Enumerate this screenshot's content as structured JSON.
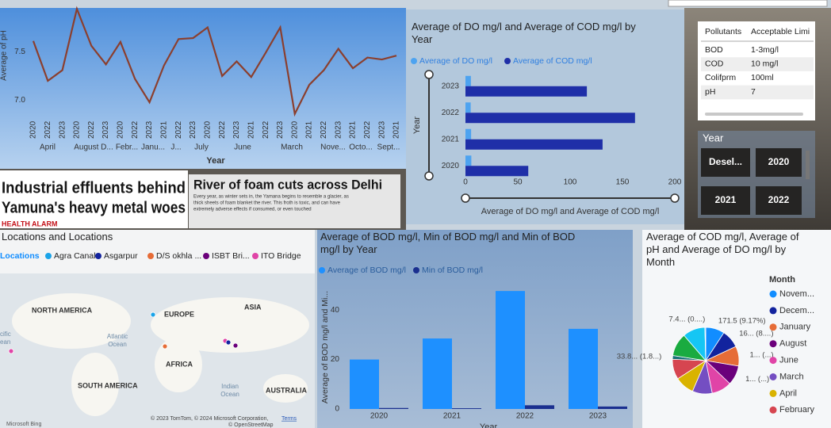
{
  "chart_data": [
    {
      "type": "line",
      "ylabel": "Average of pH",
      "xlabel": "Year",
      "categories": [
        "2020",
        "2022",
        "2023",
        "2020",
        "2022",
        "2023",
        "2020",
        "2022",
        "2023",
        "2021",
        "2022",
        "2023",
        "2020",
        "2022",
        "2023",
        "2021",
        "2022",
        "2023",
        "2020",
        "2021",
        "2022",
        "2023",
        "2021",
        "2022",
        "2023",
        "2021"
      ],
      "month_groups": [
        "April",
        "August D...",
        "Febr...",
        "Janu...",
        "J...",
        "July",
        "June",
        "March",
        "Nove...",
        "Octo...",
        "Sept..."
      ],
      "values": [
        7.61,
        7.2,
        7.31,
        7.94,
        7.56,
        7.37,
        7.6,
        7.22,
        6.98,
        7.36,
        7.63,
        7.64,
        7.75,
        7.25,
        7.4,
        7.24,
        7.49,
        7.75,
        6.86,
        7.16,
        7.31,
        7.53,
        7.33,
        7.44,
        7.42,
        7.46
      ],
      "color": "#8b3f2e",
      "ylim": [
        6.85,
        7.95
      ],
      "yticks": [
        {
          "value": 7,
          "label": "7.0"
        },
        7.5
      ]
    },
    {
      "type": "bar",
      "orientation": "horizontal",
      "title": "Average of DO mg/l and Average of COD mg/l by Year",
      "xlabel": "Average of DO mg/l and Average of COD mg/l",
      "ylabel": "Year",
      "categories": [
        "2023",
        "2022",
        "2021",
        "2020"
      ],
      "series": [
        {
          "name": "Average of DO mg/l",
          "color": "#4da3f0",
          "values": [
            5.2,
            5.0,
            5.4,
            5.6
          ]
        },
        {
          "name": "Average of COD mg/l",
          "color": "#1f2fa8",
          "values": [
            116,
            162,
            131,
            60
          ]
        }
      ],
      "xlim": [
        0,
        200
      ],
      "xticks": [
        0,
        50,
        100,
        150,
        200
      ]
    },
    {
      "type": "bar",
      "title": "Average of BOD mg/l, Min of BOD mg/l and Min of BOD mg/l by Year",
      "xlabel": "Year",
      "ylabel": "Average of BOD mg/l and Mi...",
      "categories": [
        "2020",
        "2021",
        "2022",
        "2023"
      ],
      "series": [
        {
          "name": "Average of BOD mg/l",
          "color": "#1e90ff",
          "values": [
            20,
            28.5,
            47.7,
            32.4
          ]
        },
        {
          "name": "Min of BOD mg/l",
          "color": "#1a2f8f",
          "values": [
            0.4,
            0.3,
            1.5,
            1.0
          ]
        }
      ],
      "ylim": [
        0,
        58
      ],
      "yticks": [
        0,
        20,
        40
      ]
    },
    {
      "type": "pie",
      "title": "Average of COD mg/l, Average of pH and Average of DO mg/l by Month",
      "legend_title": "Month",
      "categories": [
        "Novem...",
        "Decem...",
        "January",
        "August",
        "June",
        "March",
        "April",
        "February",
        null,
        null,
        null,
        null
      ],
      "colors": [
        "#118dff",
        "#12239e",
        "#e66c37",
        "#6b007b",
        "#e044a7",
        "#744ec2",
        "#d9b300",
        "#d64550",
        "#197278",
        "#1aab40",
        "#15c6f4",
        "#4092ff"
      ],
      "values": [
        171.5,
        165,
        180,
        178,
        182,
        180,
        175,
        183.5,
        33.8,
        210,
        204,
        7.4
      ],
      "value_labels": [
        "171.5 (9.17%)",
        "16... (8....)",
        "1... (...)",
        "1... (...)",
        null,
        null,
        null,
        null,
        "33.8... (1.8...)",
        null,
        null,
        "7.4... (0....)"
      ]
    }
  ],
  "table": {
    "columns": [
      "Pollutants",
      "Acceptable Limi"
    ],
    "rows": [
      [
        "BOD",
        "1-3mg/l"
      ],
      [
        "COD",
        "10 mg/l"
      ],
      [
        "Colifprm",
        "100ml"
      ],
      [
        "pH",
        "7"
      ]
    ]
  },
  "slicer": {
    "title": "Year",
    "options": [
      "Desel...",
      "2020",
      "2021",
      "2022"
    ]
  },
  "news": {
    "headline_1": [
      "Industrial effluents behind",
      "Yamuna's heavy metal woes"
    ],
    "tag": "HEALTH ALARM",
    "headline_2": "River of foam cuts across Delhi",
    "body": [
      "Every year, as winter sets in, the Yamana begins to resemble a glacier, as",
      "thick sheets of foam blanket the river. This froth is toxic, and can have",
      "extremely adverse effects if consumed, or even touched"
    ]
  },
  "map": {
    "title": "Locations and Locations",
    "legend_title": "Locations",
    "items": [
      {
        "name": "Agra Canal",
        "color": "#1aa3e8"
      },
      {
        "name": "Asgarpur",
        "color": "#12239e"
      },
      {
        "name": "D/S okhla ...",
        "color": "#e66c37"
      },
      {
        "name": "ISBT Bri...",
        "color": "#6b007b"
      },
      {
        "name": "ITO Bridge",
        "color": "#e044a7"
      }
    ],
    "labels": [
      "NORTH AMERICA",
      "EUROPE",
      "ASIA",
      "Atlantic",
      "Ocean",
      "AFRICA",
      "SOUTH AMERICA",
      "Indian",
      "Ocean",
      "AUSTRALIA",
      "cific",
      "ean"
    ],
    "attribution": "© 2023 TomTom, © 2024 Microsoft Corporation,",
    "terms": "Terms",
    "osm": "© OpenStreetMap",
    "brand": "Microsoft Bing"
  }
}
